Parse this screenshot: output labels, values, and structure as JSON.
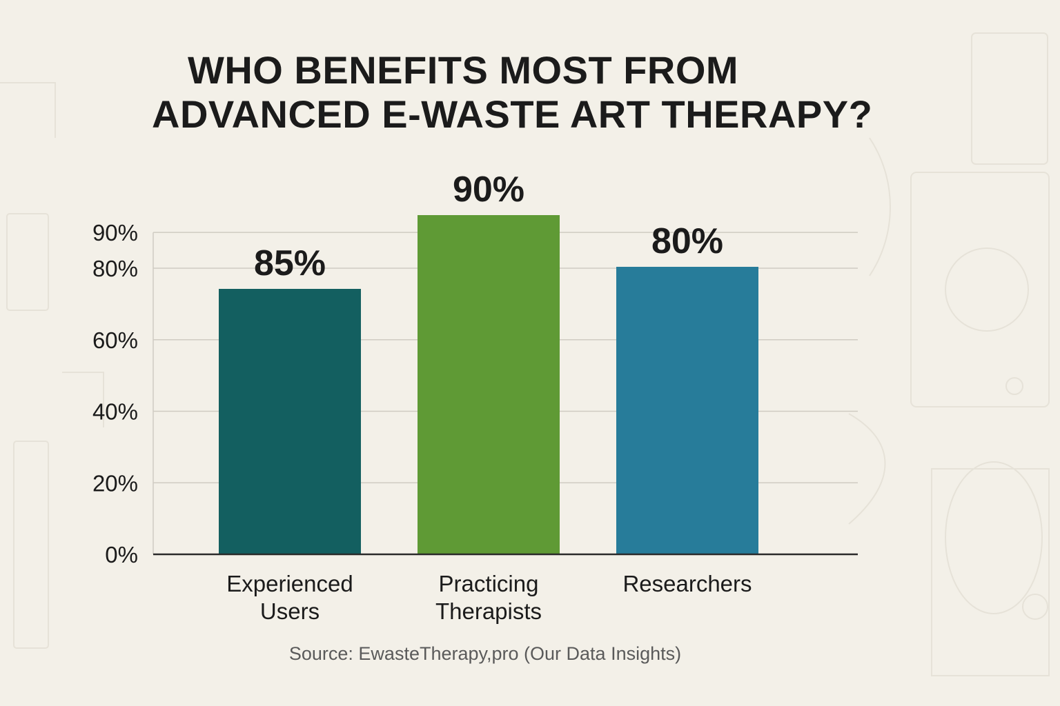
{
  "chart_data": {
    "type": "bar",
    "title": "WHO BENEFITS MOST FROM ADVANCED E-WASTE ART THERAPY?",
    "title_lines": [
      "WHO BENEFITS MOST FROM",
      "ADVANCED E-WASTE ART THERAPY?"
    ],
    "categories": [
      "Experienced Users",
      "Practicing Therapists",
      "Researchers"
    ],
    "category_lines": [
      [
        "Experienced",
        "Users"
      ],
      [
        "Practicing",
        "Therapists"
      ],
      [
        "Researchers"
      ]
    ],
    "values": [
      85,
      90,
      80
    ],
    "data_labels": [
      "85%",
      "90%",
      "80%"
    ],
    "bar_colors": [
      "#135f60",
      "#5f9a35",
      "#277c9a"
    ],
    "y_ticks": [
      0,
      20,
      40,
      60,
      80,
      90
    ],
    "y_tick_labels": [
      "0%",
      "20%",
      "40%",
      "60%",
      "80%",
      "90%"
    ],
    "ylim": [
      0,
      90
    ],
    "xlabel": "",
    "ylabel": "",
    "grid": true,
    "legend": "none"
  },
  "source": "Source: EwasteTherapy,pro (Our Data Insights)",
  "colors": {
    "background": "#f3f0e8",
    "text": "#1b1b1b",
    "grid": "#cfcbc2",
    "axis": "#2a2a2a",
    "source_text": "#5a5a5a"
  }
}
